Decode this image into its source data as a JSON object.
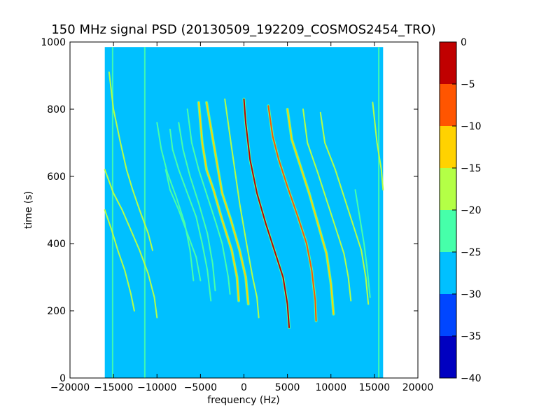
{
  "chart_data": {
    "type": "heatmap",
    "title": "150 MHz signal PSD (20130509_192209_COSMOS2454_TRO)",
    "xlabel": "frequency (Hz)",
    "ylabel": "time (s)",
    "xlim": [
      -20000,
      20000
    ],
    "ylim": [
      0,
      1000
    ],
    "data_extent": {
      "x": [
        -16000,
        16000
      ],
      "y": [
        0,
        985
      ]
    },
    "background_level": -28,
    "x_ticks": [
      -20000,
      -15000,
      -10000,
      -5000,
      0,
      5000,
      10000,
      15000,
      20000
    ],
    "x_tick_labels": [
      "−20000",
      "−15000",
      "−10000",
      "−5000",
      "0",
      "5000",
      "10000",
      "15000",
      "20000"
    ],
    "y_ticks": [
      0,
      200,
      400,
      600,
      800,
      1000
    ],
    "y_tick_labels": [
      "0",
      "200",
      "400",
      "600",
      "800",
      "1000"
    ],
    "colorbar": {
      "levels": [
        0,
        -5,
        -10,
        -15,
        -20,
        -25,
        -30,
        -35,
        -40
      ],
      "tick_labels": [
        "0",
        "−5",
        "−10",
        "−15",
        "−20",
        "−25",
        "−30",
        "−35",
        "−40"
      ],
      "colors": [
        "#c00000",
        "#ff5500",
        "#ffd200",
        "#b4ff46",
        "#46ffaa",
        "#00c0ff",
        "#0046ff",
        "#0000c0"
      ]
    },
    "grid": false,
    "series": [
      {
        "points": [
          [
            -2200,
            830
          ],
          [
            -1500,
            700
          ],
          [
            -500,
            520
          ],
          [
            300,
            400
          ],
          [
            1000,
            300
          ],
          [
            1500,
            240
          ],
          [
            1700,
            180
          ]
        ],
        "level": -18
      },
      {
        "points": [
          [
            -4300,
            820
          ],
          [
            -3500,
            700
          ],
          [
            -2500,
            550
          ],
          [
            -1500,
            470
          ],
          [
            -500,
            380
          ],
          [
            200,
            300
          ],
          [
            500,
            220
          ]
        ],
        "level": -14
      },
      {
        "points": [
          [
            -5200,
            820
          ],
          [
            -4800,
            700
          ],
          [
            -4300,
            620
          ],
          [
            -3500,
            560
          ],
          [
            -2500,
            470
          ],
          [
            -1400,
            380
          ],
          [
            -800,
            300
          ],
          [
            -600,
            230
          ]
        ],
        "level": -14
      },
      {
        "points": [
          [
            -6500,
            800
          ],
          [
            -6000,
            700
          ],
          [
            -5200,
            620
          ],
          [
            -4200,
            540
          ],
          [
            -3200,
            460
          ],
          [
            -2500,
            400
          ],
          [
            -1800,
            300
          ],
          [
            -1600,
            250
          ]
        ],
        "level": -22
      },
      {
        "points": [
          [
            -7500,
            760
          ],
          [
            -7000,
            680
          ],
          [
            -6200,
            600
          ],
          [
            -5200,
            520
          ],
          [
            -4200,
            430
          ],
          [
            -3600,
            340
          ],
          [
            -3300,
            260
          ]
        ],
        "level": -22
      },
      {
        "points": [
          [
            -8500,
            740
          ],
          [
            -8200,
            680
          ],
          [
            -7500,
            620
          ],
          [
            -6500,
            550
          ],
          [
            -5500,
            480
          ],
          [
            -4800,
            400
          ],
          [
            -4200,
            320
          ],
          [
            -3800,
            230
          ]
        ],
        "level": -22
      },
      {
        "points": [
          [
            -9000,
            620
          ],
          [
            -8500,
            560
          ],
          [
            -7500,
            500
          ],
          [
            -6500,
            430
          ],
          [
            -5500,
            360
          ],
          [
            -5000,
            290
          ]
        ],
        "level": -22
      },
      {
        "points": [
          [
            -10000,
            760
          ],
          [
            -9500,
            680
          ],
          [
            -8800,
            610
          ],
          [
            -7800,
            540
          ],
          [
            -6800,
            460
          ],
          [
            -6200,
            380
          ],
          [
            -5800,
            290
          ]
        ],
        "level": -22
      },
      {
        "points": [
          [
            0,
            830
          ],
          [
            200,
            760
          ],
          [
            700,
            650
          ],
          [
            1500,
            550
          ],
          [
            2500,
            460
          ],
          [
            3500,
            380
          ],
          [
            4500,
            300
          ],
          [
            5000,
            220
          ],
          [
            5200,
            150
          ]
        ],
        "level": -4
      },
      {
        "points": [
          [
            2800,
            810
          ],
          [
            3300,
            720
          ],
          [
            4000,
            650
          ],
          [
            5000,
            570
          ],
          [
            6200,
            480
          ],
          [
            7200,
            400
          ],
          [
            7800,
            320
          ],
          [
            8200,
            230
          ],
          [
            8300,
            170
          ]
        ],
        "level": -8
      },
      {
        "points": [
          [
            5000,
            800
          ],
          [
            5500,
            710
          ],
          [
            6500,
            630
          ],
          [
            7500,
            550
          ],
          [
            8500,
            460
          ],
          [
            9500,
            370
          ],
          [
            10000,
            280
          ],
          [
            10300,
            190
          ]
        ],
        "level": -12
      },
      {
        "points": [
          [
            6800,
            800
          ],
          [
            7300,
            700
          ],
          [
            8500,
            610
          ],
          [
            9500,
            530
          ],
          [
            10500,
            450
          ],
          [
            11500,
            370
          ],
          [
            12000,
            300
          ],
          [
            12300,
            230
          ]
        ],
        "level": -20
      },
      {
        "points": [
          [
            8800,
            790
          ],
          [
            9300,
            700
          ],
          [
            10500,
            620
          ],
          [
            11500,
            540
          ],
          [
            12500,
            460
          ],
          [
            13500,
            380
          ],
          [
            14000,
            300
          ],
          [
            14300,
            220
          ]
        ],
        "level": -18
      },
      {
        "points": [
          [
            -16000,
            620
          ],
          [
            -15000,
            550
          ],
          [
            -14000,
            500
          ],
          [
            -13000,
            440
          ],
          [
            -12000,
            380
          ],
          [
            -11000,
            310
          ],
          [
            -10300,
            240
          ],
          [
            -10000,
            180
          ]
        ],
        "level": -16
      },
      {
        "points": [
          [
            -15500,
            910
          ],
          [
            -15000,
            800
          ],
          [
            -14200,
            700
          ],
          [
            -13500,
            620
          ],
          [
            -12800,
            560
          ],
          [
            -12000,
            500
          ],
          [
            -11000,
            430
          ],
          [
            -10500,
            380
          ]
        ],
        "level": -18
      },
      {
        "points": [
          [
            -16000,
            500
          ],
          [
            -15200,
            440
          ],
          [
            -14500,
            380
          ],
          [
            -13700,
            320
          ],
          [
            -13000,
            250
          ],
          [
            -12600,
            200
          ]
        ],
        "level": -18
      },
      {
        "points": [
          [
            14800,
            820
          ],
          [
            15300,
            700
          ],
          [
            15800,
            620
          ],
          [
            16000,
            560
          ]
        ],
        "level": -20
      },
      {
        "points": [
          [
            12800,
            560
          ],
          [
            13300,
            480
          ],
          [
            13800,
            400
          ],
          [
            14200,
            320
          ],
          [
            14500,
            240
          ]
        ],
        "level": -22
      }
    ],
    "vertical_stripes": [
      {
        "x": -15100,
        "level": -22
      },
      {
        "x": -11400,
        "level": -22
      },
      {
        "x": 15500,
        "level": -24
      }
    ]
  }
}
